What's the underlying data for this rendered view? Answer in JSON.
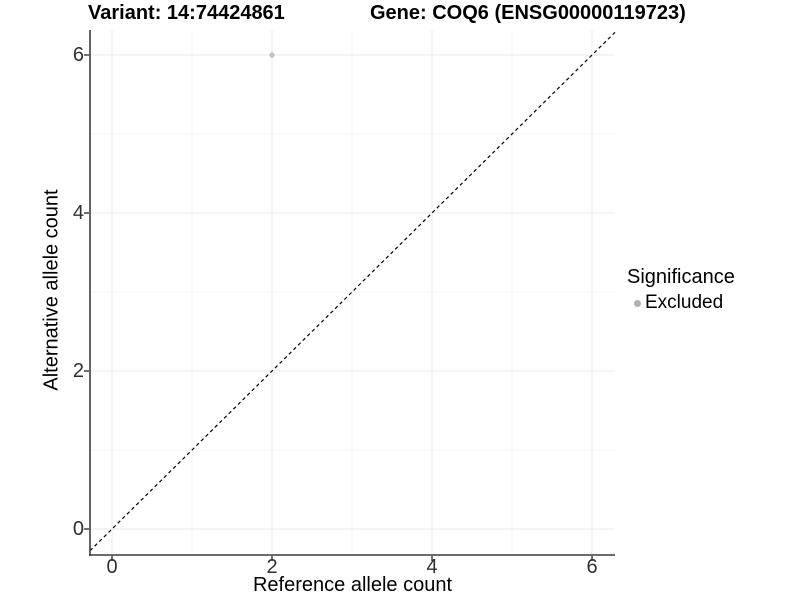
{
  "chart_data": {
    "type": "scatter",
    "title_variant": "Variant: 14:74424861",
    "title_gene": "Gene: COQ6 (ENSG00000119723)",
    "xlabel": "Reference allele count",
    "ylabel": "Alternative allele count",
    "xlim": [
      -0.3,
      6.3
    ],
    "ylim": [
      -0.3,
      6.3
    ],
    "x_ticks": [
      0,
      2,
      4,
      6
    ],
    "y_ticks": [
      0,
      2,
      4,
      6
    ],
    "x_minor_ticks": [
      1,
      3,
      5
    ],
    "y_minor_ticks": [
      1,
      3,
      5
    ],
    "grid": "on",
    "points": [
      {
        "x": 2,
        "y": 6,
        "series": "Excluded"
      }
    ],
    "reference_line": {
      "kind": "identity y=x",
      "style": "dashed",
      "color": "#000000"
    },
    "legend": {
      "position": "right",
      "title": "Significance",
      "items": [
        {
          "label": "Excluded",
          "marker": "circle",
          "color": "#b0b0b0"
        }
      ]
    },
    "colors": {
      "background": "#ffffff",
      "point": "#c0c0c0",
      "grid_major": "#e9e9e9",
      "grid_minor": "#f4f4f4",
      "axis_line": "#3c3c3c",
      "tick_mark": "#333333",
      "tick_text": "#303030",
      "title_text": "#000000"
    }
  }
}
